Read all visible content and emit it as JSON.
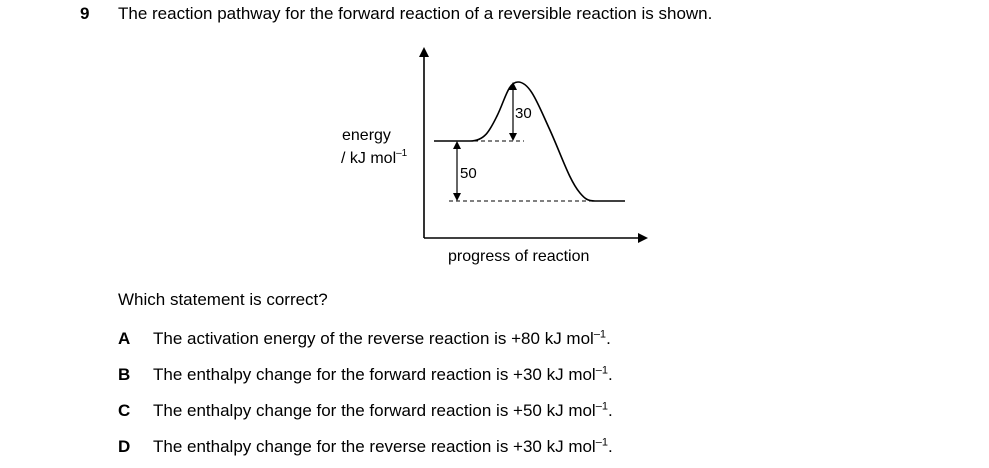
{
  "question": {
    "number": "9",
    "stem": "The reaction pathway for the forward reaction of a reversible reaction is shown."
  },
  "diagram": {
    "y_label_line1": "energy",
    "y_label_line2": "/ kJ mol",
    "y_label_unit_sup": "–1",
    "x_label": "progress of reaction",
    "gap_label_30": "30",
    "gap_label_50": "50"
  },
  "prompt": "Which statement is correct?",
  "options": [
    {
      "letter": "A",
      "text": "The activation energy of the reverse reaction is +80 kJ mol",
      "sup": "–1",
      "end": "."
    },
    {
      "letter": "B",
      "text": "The enthalpy change for the forward reaction is +30 kJ mol",
      "sup": "–1",
      "end": "."
    },
    {
      "letter": "C",
      "text": "The enthalpy change for the forward reaction is +50 kJ mol",
      "sup": "–1",
      "end": "."
    },
    {
      "letter": "D",
      "text": "The enthalpy change for the reverse reaction is +30 kJ mol",
      "sup": "–1",
      "end": "."
    }
  ]
}
